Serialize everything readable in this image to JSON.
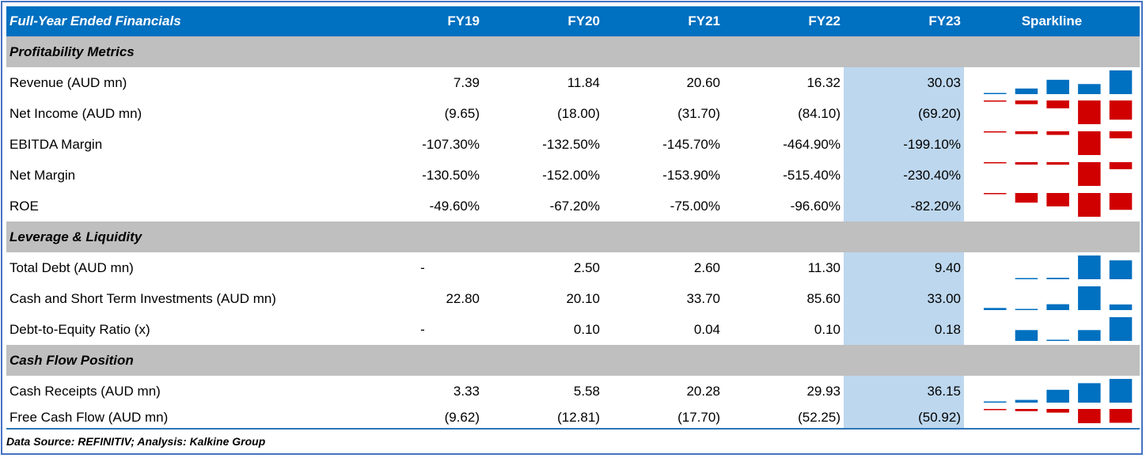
{
  "header": {
    "title": "Full-Year Ended Financials",
    "years": [
      "FY19",
      "FY20",
      "FY21",
      "FY22",
      "FY23"
    ],
    "sparkline_label": "Sparkline"
  },
  "colors": {
    "header_bg": "#0070C0",
    "section_bg": "#BFBFBF",
    "highlight": "#BDD7EE",
    "positive": "#0070C0",
    "negative": "#D00000"
  },
  "sections": [
    {
      "title": "Profitability Metrics",
      "rows": [
        {
          "label": "Revenue (AUD mn)",
          "values": [
            "7.39",
            "11.84",
            "20.60",
            "16.32",
            "30.03"
          ],
          "numeric": [
            7.39,
            11.84,
            20.6,
            16.32,
            30.03
          ]
        },
        {
          "label": "Net Income (AUD mn)",
          "values": [
            "(9.65)",
            "(18.00)",
            "(31.70)",
            "(84.10)",
            "(69.20)"
          ],
          "numeric": [
            -9.65,
            -18.0,
            -31.7,
            -84.1,
            -69.2
          ]
        },
        {
          "label": "EBITDA Margin",
          "values": [
            "-107.30%",
            "-132.50%",
            "-145.70%",
            "-464.90%",
            "-199.10%"
          ],
          "numeric": [
            -107.3,
            -132.5,
            -145.7,
            -464.9,
            -199.1
          ]
        },
        {
          "label": "Net Margin",
          "values": [
            "-130.50%",
            "-152.00%",
            "-153.90%",
            "-515.40%",
            "-230.40%"
          ],
          "numeric": [
            -130.5,
            -152.0,
            -153.9,
            -515.4,
            -230.4
          ]
        },
        {
          "label": "ROE",
          "values": [
            "-49.60%",
            "-67.20%",
            "-75.00%",
            "-96.60%",
            "-82.20%"
          ],
          "numeric": [
            -49.6,
            -67.2,
            -75.0,
            -96.6,
            -82.2
          ]
        }
      ]
    },
    {
      "title": "Leverage & Liquidity",
      "rows": [
        {
          "label": "Total Debt (AUD mn)",
          "values": [
            "-",
            "2.50",
            "2.60",
            "11.30",
            "9.40"
          ],
          "numeric": [
            null,
            2.5,
            2.6,
            11.3,
            9.4
          ]
        },
        {
          "label": "Cash and Short Term Investments (AUD mn)",
          "values": [
            "22.80",
            "20.10",
            "33.70",
            "85.60",
            "33.00"
          ],
          "numeric": [
            22.8,
            20.1,
            33.7,
            85.6,
            33.0
          ]
        },
        {
          "label": "Debt-to-Equity Ratio (x)",
          "values": [
            "-",
            "0.10",
            "0.04",
            "0.10",
            "0.18"
          ],
          "numeric": [
            null,
            0.1,
            0.04,
            0.1,
            0.18
          ]
        }
      ]
    },
    {
      "title": "Cash Flow Position",
      "rows": [
        {
          "label": "Cash Receipts (AUD mn)",
          "values": [
            "3.33",
            "5.58",
            "20.28",
            "29.93",
            "36.15"
          ],
          "numeric": [
            3.33,
            5.58,
            20.28,
            29.93,
            36.15
          ]
        },
        {
          "label": "Free Cash Flow (AUD mn)",
          "values": [
            "(9.62)",
            "(12.81)",
            "(17.70)",
            "(52.25)",
            "(50.92)"
          ],
          "numeric": [
            -9.62,
            -12.81,
            -17.7,
            -52.25,
            -50.92
          ]
        }
      ]
    }
  ],
  "footer": "Data Source: REFINITIV; Analysis: Kalkine Group"
}
